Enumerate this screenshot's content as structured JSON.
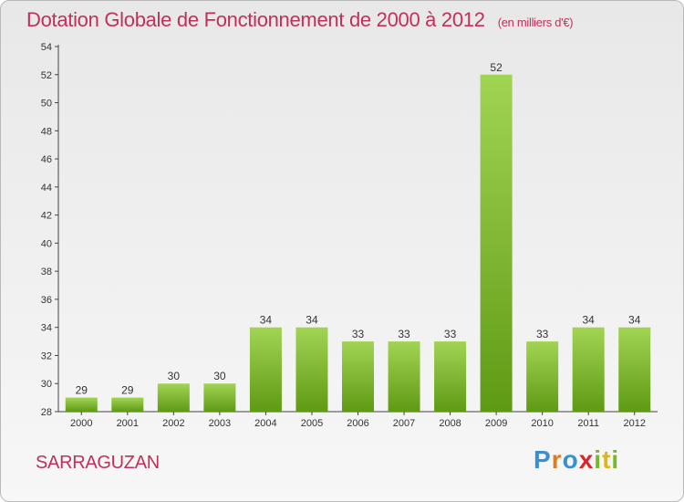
{
  "title": "Dotation Globale de Fonctionnement de 2000 à 2012",
  "unit": "(en milliers d'€)",
  "commune": "SARRAGUZAN",
  "logo": {
    "letters": [
      "P",
      "r",
      "o",
      "x",
      "i",
      "t",
      "i"
    ],
    "colors": [
      "#3a8fd0",
      "#e07a1f",
      "#3a8fd0",
      "#d9262e",
      "#7ab82a",
      "#e0b41f",
      "#7ab82a"
    ]
  },
  "chart_data": {
    "type": "bar",
    "categories": [
      "2000",
      "2001",
      "2002",
      "2003",
      "2004",
      "2005",
      "2006",
      "2007",
      "2008",
      "2009",
      "2010",
      "2011",
      "2012"
    ],
    "values": [
      29,
      29,
      30,
      30,
      34,
      34,
      33,
      33,
      33,
      52,
      33,
      34,
      34
    ],
    "ylim": [
      28,
      54
    ],
    "yticks": [
      28,
      30,
      32,
      34,
      36,
      38,
      40,
      42,
      44,
      46,
      48,
      50,
      52,
      54
    ],
    "grid": false,
    "bar_color": "#7fc03a"
  }
}
